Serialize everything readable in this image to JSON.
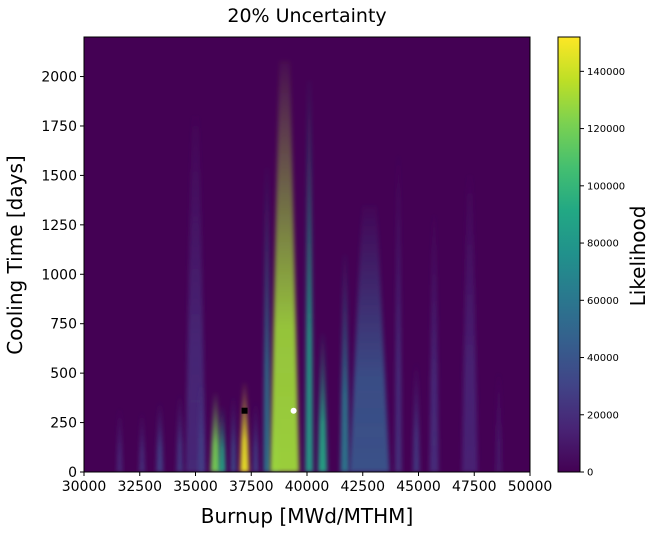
{
  "chart_data": {
    "type": "heatmap",
    "title": "20% Uncertainty",
    "xlabel": "Burnup [MWd/MTHM]",
    "ylabel": "Cooling Time [days]",
    "colorbar_label": "Likelihood",
    "colormap": "viridis",
    "xlim": [
      30000,
      50000
    ],
    "ylim": [
      0,
      2200
    ],
    "x_ticks": [
      30000,
      32500,
      35000,
      37500,
      40000,
      42500,
      45000,
      47500,
      50000
    ],
    "y_ticks": [
      0,
      250,
      500,
      750,
      1000,
      1250,
      1500,
      1750,
      2000
    ],
    "colorbar_range": [
      0,
      152000
    ],
    "colorbar_ticks": [
      0,
      20000,
      40000,
      60000,
      80000,
      100000,
      120000,
      140000
    ],
    "background_value": 0,
    "plumes": [
      {
        "x": 31600,
        "width": 250,
        "y_top": 320,
        "peak": 18000
      },
      {
        "x": 32600,
        "width": 250,
        "y_top": 300,
        "peak": 22000
      },
      {
        "x": 33400,
        "width": 300,
        "y_top": 350,
        "peak": 30000
      },
      {
        "x": 34300,
        "width": 300,
        "y_top": 390,
        "peak": 26000
      },
      {
        "x": 35000,
        "width": 900,
        "y_top": 1800,
        "peak": 18000
      },
      {
        "x": 35250,
        "width": 250,
        "y_top": 450,
        "peak": 30000
      },
      {
        "x": 35900,
        "width": 450,
        "y_top": 400,
        "peak": 120000
      },
      {
        "x": 36200,
        "width": 300,
        "y_top": 330,
        "peak": 90000
      },
      {
        "x": 36700,
        "width": 250,
        "y_top": 380,
        "peak": 35000
      },
      {
        "x": 37200,
        "width": 400,
        "y_top": 450,
        "peak": 148000
      },
      {
        "x": 37700,
        "width": 250,
        "y_top": 350,
        "peak": 30000
      },
      {
        "x": 38200,
        "width": 300,
        "y_top": 1540,
        "peak": 60000
      },
      {
        "x": 38600,
        "width": 250,
        "y_top": 300,
        "peak": 45000
      },
      {
        "x": 39000,
        "width": 1300,
        "y_top": 2080,
        "peak": 130000
      },
      {
        "x": 40100,
        "width": 350,
        "y_top": 1980,
        "peak": 85000
      },
      {
        "x": 40700,
        "width": 400,
        "y_top": 700,
        "peak": 90000
      },
      {
        "x": 41700,
        "width": 400,
        "y_top": 1100,
        "peak": 60000
      },
      {
        "x": 42800,
        "width": 1800,
        "y_top": 1350,
        "peak": 40000
      },
      {
        "x": 44100,
        "width": 300,
        "y_top": 1600,
        "peak": 22000
      },
      {
        "x": 44900,
        "width": 300,
        "y_top": 550,
        "peak": 25000
      },
      {
        "x": 45700,
        "width": 400,
        "y_top": 1300,
        "peak": 20000
      },
      {
        "x": 47300,
        "width": 700,
        "y_top": 1500,
        "peak": 15000
      },
      {
        "x": 48600,
        "width": 300,
        "y_top": 500,
        "peak": 9000
      }
    ],
    "markers": [
      {
        "x": 37200,
        "y": 310,
        "color": "#000000"
      },
      {
        "x": 39400,
        "y": 310,
        "color": "#ffffff"
      }
    ]
  }
}
